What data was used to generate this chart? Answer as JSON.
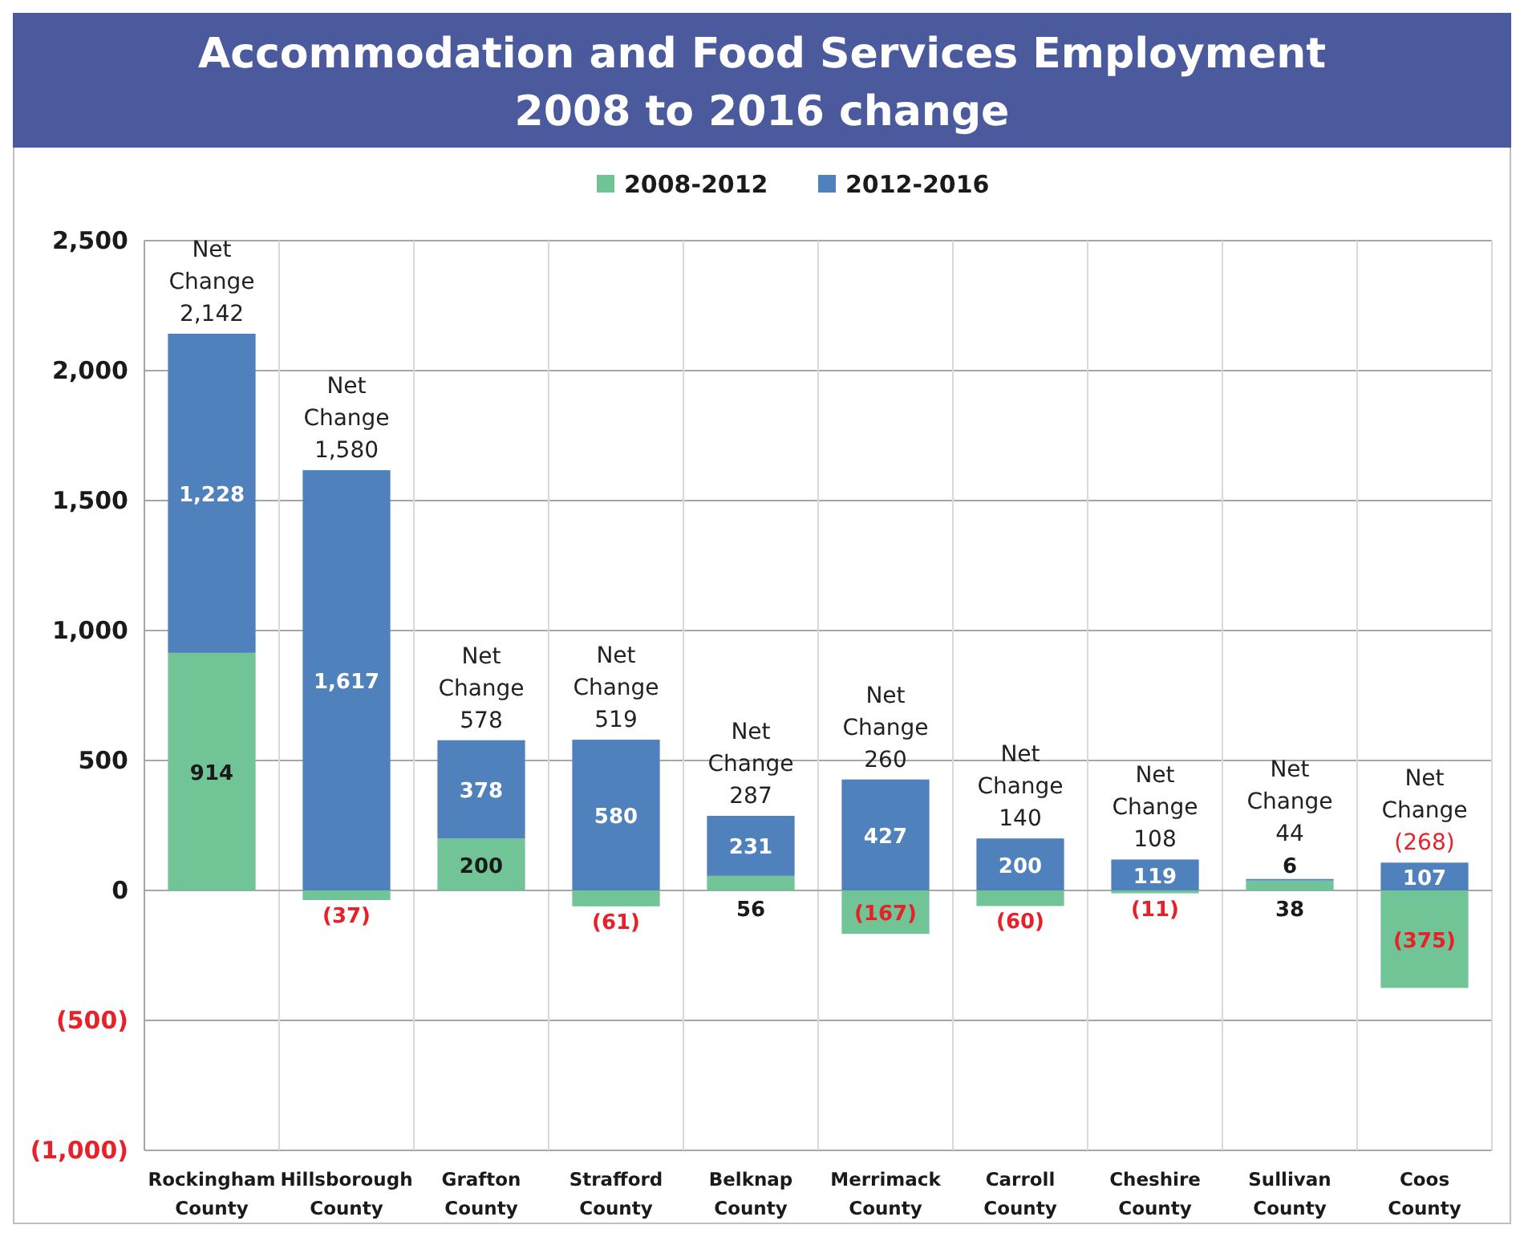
{
  "chart_data": {
    "type": "bar",
    "title": "Accommodation and Food Services Employment",
    "subtitle": "2008 to 2016 change",
    "categories": [
      "Rockingham County",
      "Hillsborough County",
      "Grafton County",
      "Strafford County",
      "Belknap County",
      "Merrimack County",
      "Carroll County",
      "Cheshire County",
      "Sullivan County",
      "Coos County"
    ],
    "series": [
      {
        "name": "2008-2012",
        "color": "#70c495",
        "values": [
          914,
          -37,
          200,
          -61,
          56,
          -167,
          -60,
          -11,
          38,
          -375
        ],
        "value_labels": [
          "914",
          "(37)",
          "200",
          "(61)",
          "56",
          "(167)",
          "(60)",
          "(11)",
          "38",
          "(375)"
        ]
      },
      {
        "name": "2012-2016",
        "color": "#4f81bd",
        "values": [
          1228,
          1617,
          378,
          580,
          231,
          427,
          200,
          119,
          6,
          107
        ],
        "value_labels": [
          "1,228",
          "1,617",
          "378",
          "580",
          "231",
          "427",
          "200",
          "119",
          "6",
          "107"
        ]
      }
    ],
    "stacked": true,
    "totals": [
      "Net Change 2,142",
      "Net Change 1,580",
      "Net Change 578",
      "Net Change 519",
      "Net Change 287",
      "Net Change 260",
      "Net Change 140",
      "Net Change 108",
      "Net Change 44",
      "Net Change (268)"
    ],
    "ylim": [
      -1000,
      2500
    ],
    "yticks": [
      {
        "value": -1000,
        "label": "(1,000)"
      },
      {
        "value": -500,
        "label": "(500)"
      },
      {
        "value": 0,
        "label": "0"
      },
      {
        "value": 500,
        "label": "500"
      },
      {
        "value": 1000,
        "label": "1,000"
      },
      {
        "value": 1500,
        "label": "1,500"
      },
      {
        "value": 2000,
        "label": "2,000"
      },
      {
        "value": 2500,
        "label": "2,500"
      }
    ],
    "grid": true,
    "legend": "top"
  }
}
